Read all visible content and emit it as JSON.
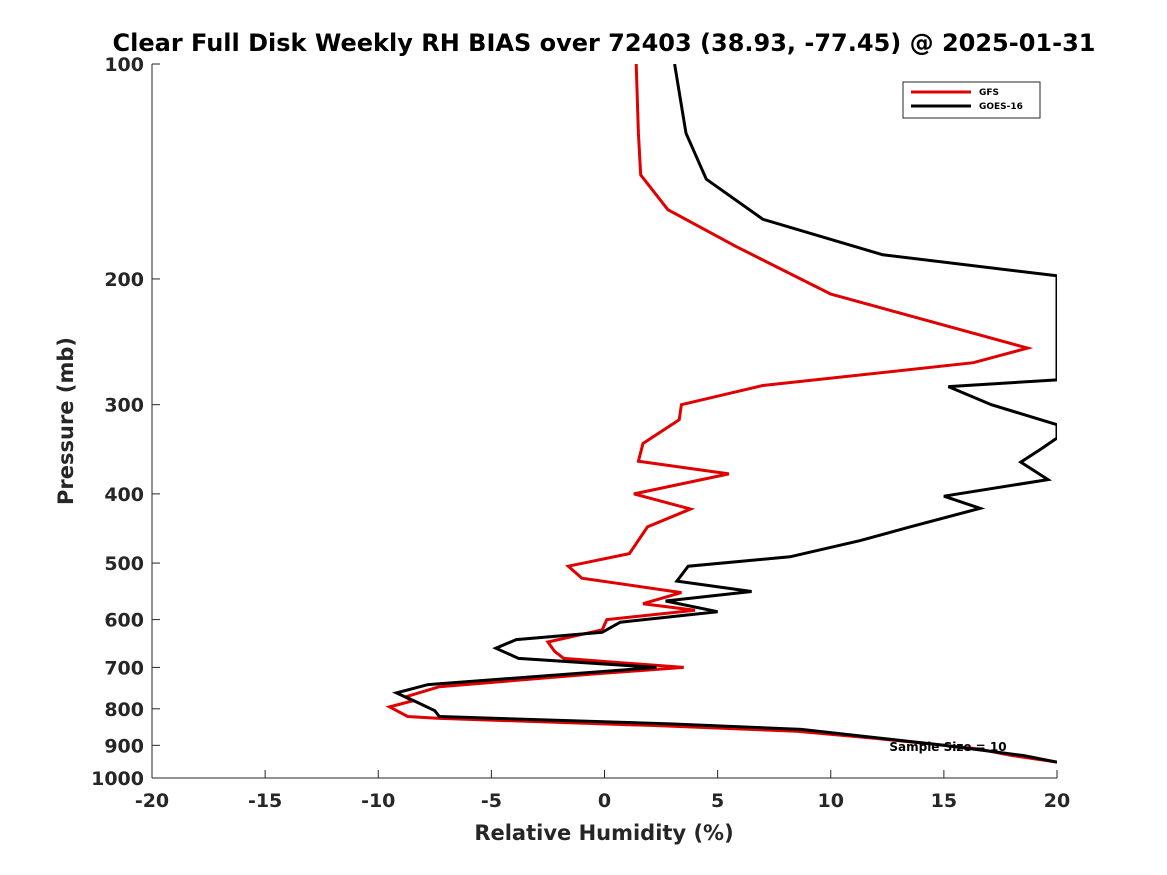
{
  "chart_data": {
    "type": "line",
    "title": "Clear Full Disk Weekly RH BIAS over 72403 (38.93, -77.45) @ 2025-01-31",
    "xlabel": "Relative Humidity (%)",
    "ylabel": "Pressure (mb)",
    "xlim": [
      -20,
      20
    ],
    "ylim": [
      100,
      1000
    ],
    "yscale": "log",
    "y_reversed": true,
    "xticks": [
      -20,
      -15,
      -10,
      -5,
      0,
      5,
      10,
      15,
      20
    ],
    "yticks": [
      100,
      200,
      300,
      400,
      500,
      600,
      700,
      800,
      900,
      1000
    ],
    "grid": false,
    "legend_position": "top-right",
    "annotation": "Sample Size = 10",
    "series": [
      {
        "name": "GFS",
        "color": "#e00000",
        "points": [
          [
            1.4,
            100
          ],
          [
            1.5,
            125
          ],
          [
            1.6,
            143
          ],
          [
            2.8,
            160
          ],
          [
            5.8,
            180
          ],
          [
            10.0,
            210
          ],
          [
            18.7,
            250
          ],
          [
            16.3,
            262
          ],
          [
            7.0,
            282
          ],
          [
            3.4,
            300
          ],
          [
            3.3,
            315
          ],
          [
            1.7,
            340
          ],
          [
            1.5,
            360
          ],
          [
            5.5,
            375
          ],
          [
            1.3,
            400
          ],
          [
            3.8,
            420
          ],
          [
            1.9,
            445
          ],
          [
            1.1,
            485
          ],
          [
            -1.6,
            505
          ],
          [
            -1.0,
            525
          ],
          [
            3.4,
            550
          ],
          [
            1.7,
            570
          ],
          [
            4.0,
            582
          ],
          [
            0.1,
            600
          ],
          [
            -0.1,
            620
          ],
          [
            -2.5,
            645
          ],
          [
            -2.2,
            665
          ],
          [
            -1.8,
            680
          ],
          [
            3.5,
            700
          ],
          [
            -0.5,
            715
          ],
          [
            -7.3,
            745
          ],
          [
            -8.8,
            770
          ],
          [
            -8.5,
            780
          ],
          [
            -9.5,
            795
          ],
          [
            -8.7,
            820
          ],
          [
            -7.4,
            825
          ],
          [
            2.5,
            845
          ],
          [
            8.5,
            860
          ],
          [
            12.0,
            880
          ],
          [
            16.5,
            910
          ],
          [
            18.0,
            930
          ],
          [
            20.0,
            950
          ]
        ]
      },
      {
        "name": "GOES-16",
        "color": "#000000",
        "points": [
          [
            3.1,
            100
          ],
          [
            3.6,
            125
          ],
          [
            4.5,
            145
          ],
          [
            7.0,
            165
          ],
          [
            12.3,
            185
          ],
          [
            20.0,
            198
          ],
          [
            20.0,
            277
          ],
          [
            15.2,
            283
          ],
          [
            17.1,
            300
          ],
          [
            20.0,
            320
          ],
          [
            20.0,
            334
          ],
          [
            19.3,
            346
          ],
          [
            18.4,
            361
          ],
          [
            19.6,
            382
          ],
          [
            15.0,
            403
          ],
          [
            16.6,
            419
          ],
          [
            13.5,
            445
          ],
          [
            11.3,
            465
          ],
          [
            8.2,
            490
          ],
          [
            3.7,
            505
          ],
          [
            3.2,
            530
          ],
          [
            6.5,
            548
          ],
          [
            2.7,
            565
          ],
          [
            5.0,
            585
          ],
          [
            0.7,
            605
          ],
          [
            -0.1,
            625
          ],
          [
            -3.9,
            640
          ],
          [
            -4.8,
            658
          ],
          [
            -3.8,
            680
          ],
          [
            2.3,
            700
          ],
          [
            -7.8,
            740
          ],
          [
            -9.2,
            760
          ],
          [
            -8.8,
            770
          ],
          [
            -8.4,
            780
          ],
          [
            -7.5,
            805
          ],
          [
            -7.3,
            820
          ],
          [
            2.9,
            840
          ],
          [
            8.7,
            855
          ],
          [
            15.0,
            900
          ],
          [
            18.5,
            930
          ],
          [
            20.0,
            950
          ]
        ]
      }
    ]
  }
}
